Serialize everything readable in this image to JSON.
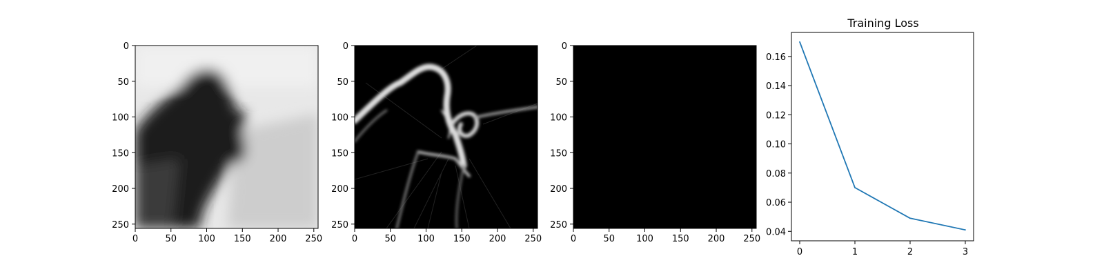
{
  "chart_data": [
    {
      "type": "heatmap",
      "image_content": "blurred grayscale image: dark silhouette on a light background",
      "xticks": [
        "0",
        "50",
        "100",
        "150",
        "200",
        "250"
      ],
      "yticks": [
        "0",
        "50",
        "100",
        "150",
        "200",
        "250"
      ],
      "xlim": [
        0,
        256
      ],
      "ylim": [
        256,
        0
      ]
    },
    {
      "type": "heatmap",
      "image_content": "edge-magnitude map: bright outlines on a black background",
      "xticks": [
        "0",
        "50",
        "100",
        "150",
        "200",
        "250"
      ],
      "yticks": [
        "0",
        "50",
        "100",
        "150",
        "200",
        "250"
      ],
      "xlim": [
        0,
        256
      ],
      "ylim": [
        256,
        0
      ]
    },
    {
      "type": "heatmap",
      "image_content": "uniformly black image",
      "xticks": [
        "0",
        "50",
        "100",
        "150",
        "200",
        "250"
      ],
      "yticks": [
        "0",
        "50",
        "100",
        "150",
        "200",
        "250"
      ],
      "xlim": [
        0,
        256
      ],
      "ylim": [
        256,
        0
      ]
    },
    {
      "type": "line",
      "title": "Training Loss",
      "xlabel": "",
      "ylabel": "",
      "x": [
        0,
        1,
        2,
        3
      ],
      "series": [
        {
          "values": [
            0.17,
            0.07,
            0.049,
            0.041
          ],
          "color": "#1f77b4"
        }
      ],
      "xticks": [
        "0",
        "1",
        "2",
        "3"
      ],
      "yticks": [
        "0.04",
        "0.06",
        "0.08",
        "0.10",
        "0.12",
        "0.14",
        "0.16"
      ],
      "xlim": [
        -0.15,
        3.15
      ],
      "ylim": [
        0.0335,
        0.1765
      ],
      "grid": false
    }
  ]
}
